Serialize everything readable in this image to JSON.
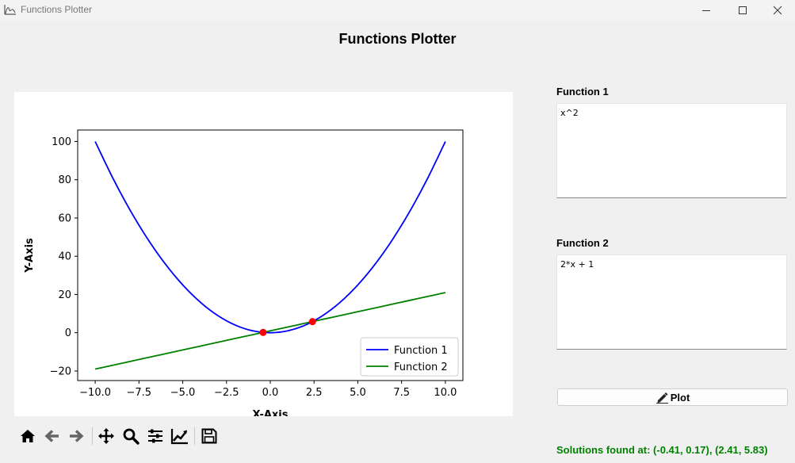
{
  "window": {
    "title": "Functions Plotter"
  },
  "header": {
    "title": "Functions Plotter"
  },
  "plot": {
    "xlabel": "X-Axis",
    "ylabel": "Y-Axis",
    "x_ticks": [
      "−10.0",
      "−7.5",
      "−5.0",
      "−2.5",
      "0.0",
      "2.5",
      "5.0",
      "7.5",
      "10.0"
    ],
    "y_ticks": [
      "−20",
      "0",
      "20",
      "40",
      "60",
      "80",
      "100"
    ],
    "legend": [
      "Function 1",
      "Function 2"
    ]
  },
  "chart_data": {
    "type": "line",
    "xlabel": "X-Axis",
    "ylabel": "Y-Axis",
    "xlim": [
      -11,
      11
    ],
    "ylim": [
      -25,
      106
    ],
    "x_ticks": [
      -10,
      -7.5,
      -5,
      -2.5,
      0,
      2.5,
      5,
      7.5,
      10
    ],
    "y_ticks": [
      -20,
      0,
      20,
      40,
      60,
      80,
      100
    ],
    "x": [
      -10,
      -9,
      -8,
      -7,
      -6,
      -5,
      -4,
      -3,
      -2,
      -1,
      0,
      1,
      2,
      3,
      4,
      5,
      6,
      7,
      8,
      9,
      10
    ],
    "series": [
      {
        "name": "Function 1",
        "color": "#0000ff",
        "values": [
          100,
          81,
          64,
          49,
          36,
          25,
          16,
          9,
          4,
          1,
          0,
          1,
          4,
          9,
          16,
          25,
          36,
          49,
          64,
          81,
          100
        ]
      },
      {
        "name": "Function 2",
        "color": "#008000",
        "values": [
          -19,
          -17,
          -15,
          -13,
          -11,
          -9,
          -7,
          -5,
          -3,
          -1,
          1,
          3,
          5,
          7,
          9,
          11,
          13,
          15,
          17,
          19,
          21
        ]
      }
    ],
    "points": [
      {
        "x": -0.41,
        "y": 0.17,
        "color": "#ff0000"
      },
      {
        "x": 2.41,
        "y": 5.83,
        "color": "#ff0000"
      }
    ],
    "legend_position": "bottom-right",
    "grid": false
  },
  "toolbar": {
    "items": [
      {
        "icon": "home-icon"
      },
      {
        "icon": "back-arrow-icon"
      },
      {
        "icon": "forward-arrow-icon"
      },
      {
        "icon": "pan-icon"
      },
      {
        "icon": "zoom-icon"
      },
      {
        "icon": "configure-subplots-icon"
      },
      {
        "icon": "edit-axes-icon"
      },
      {
        "icon": "save-icon"
      }
    ]
  },
  "function1": {
    "label": "Function 1",
    "value": "x^2"
  },
  "function2": {
    "label": "Function 2",
    "value": "2*x + 1"
  },
  "plot_button": {
    "label": "Plot",
    "icon": "pen-icon"
  },
  "solutions": {
    "text": "Solutions found at: (-0.41, 0.17), (2.41, 5.83)"
  }
}
